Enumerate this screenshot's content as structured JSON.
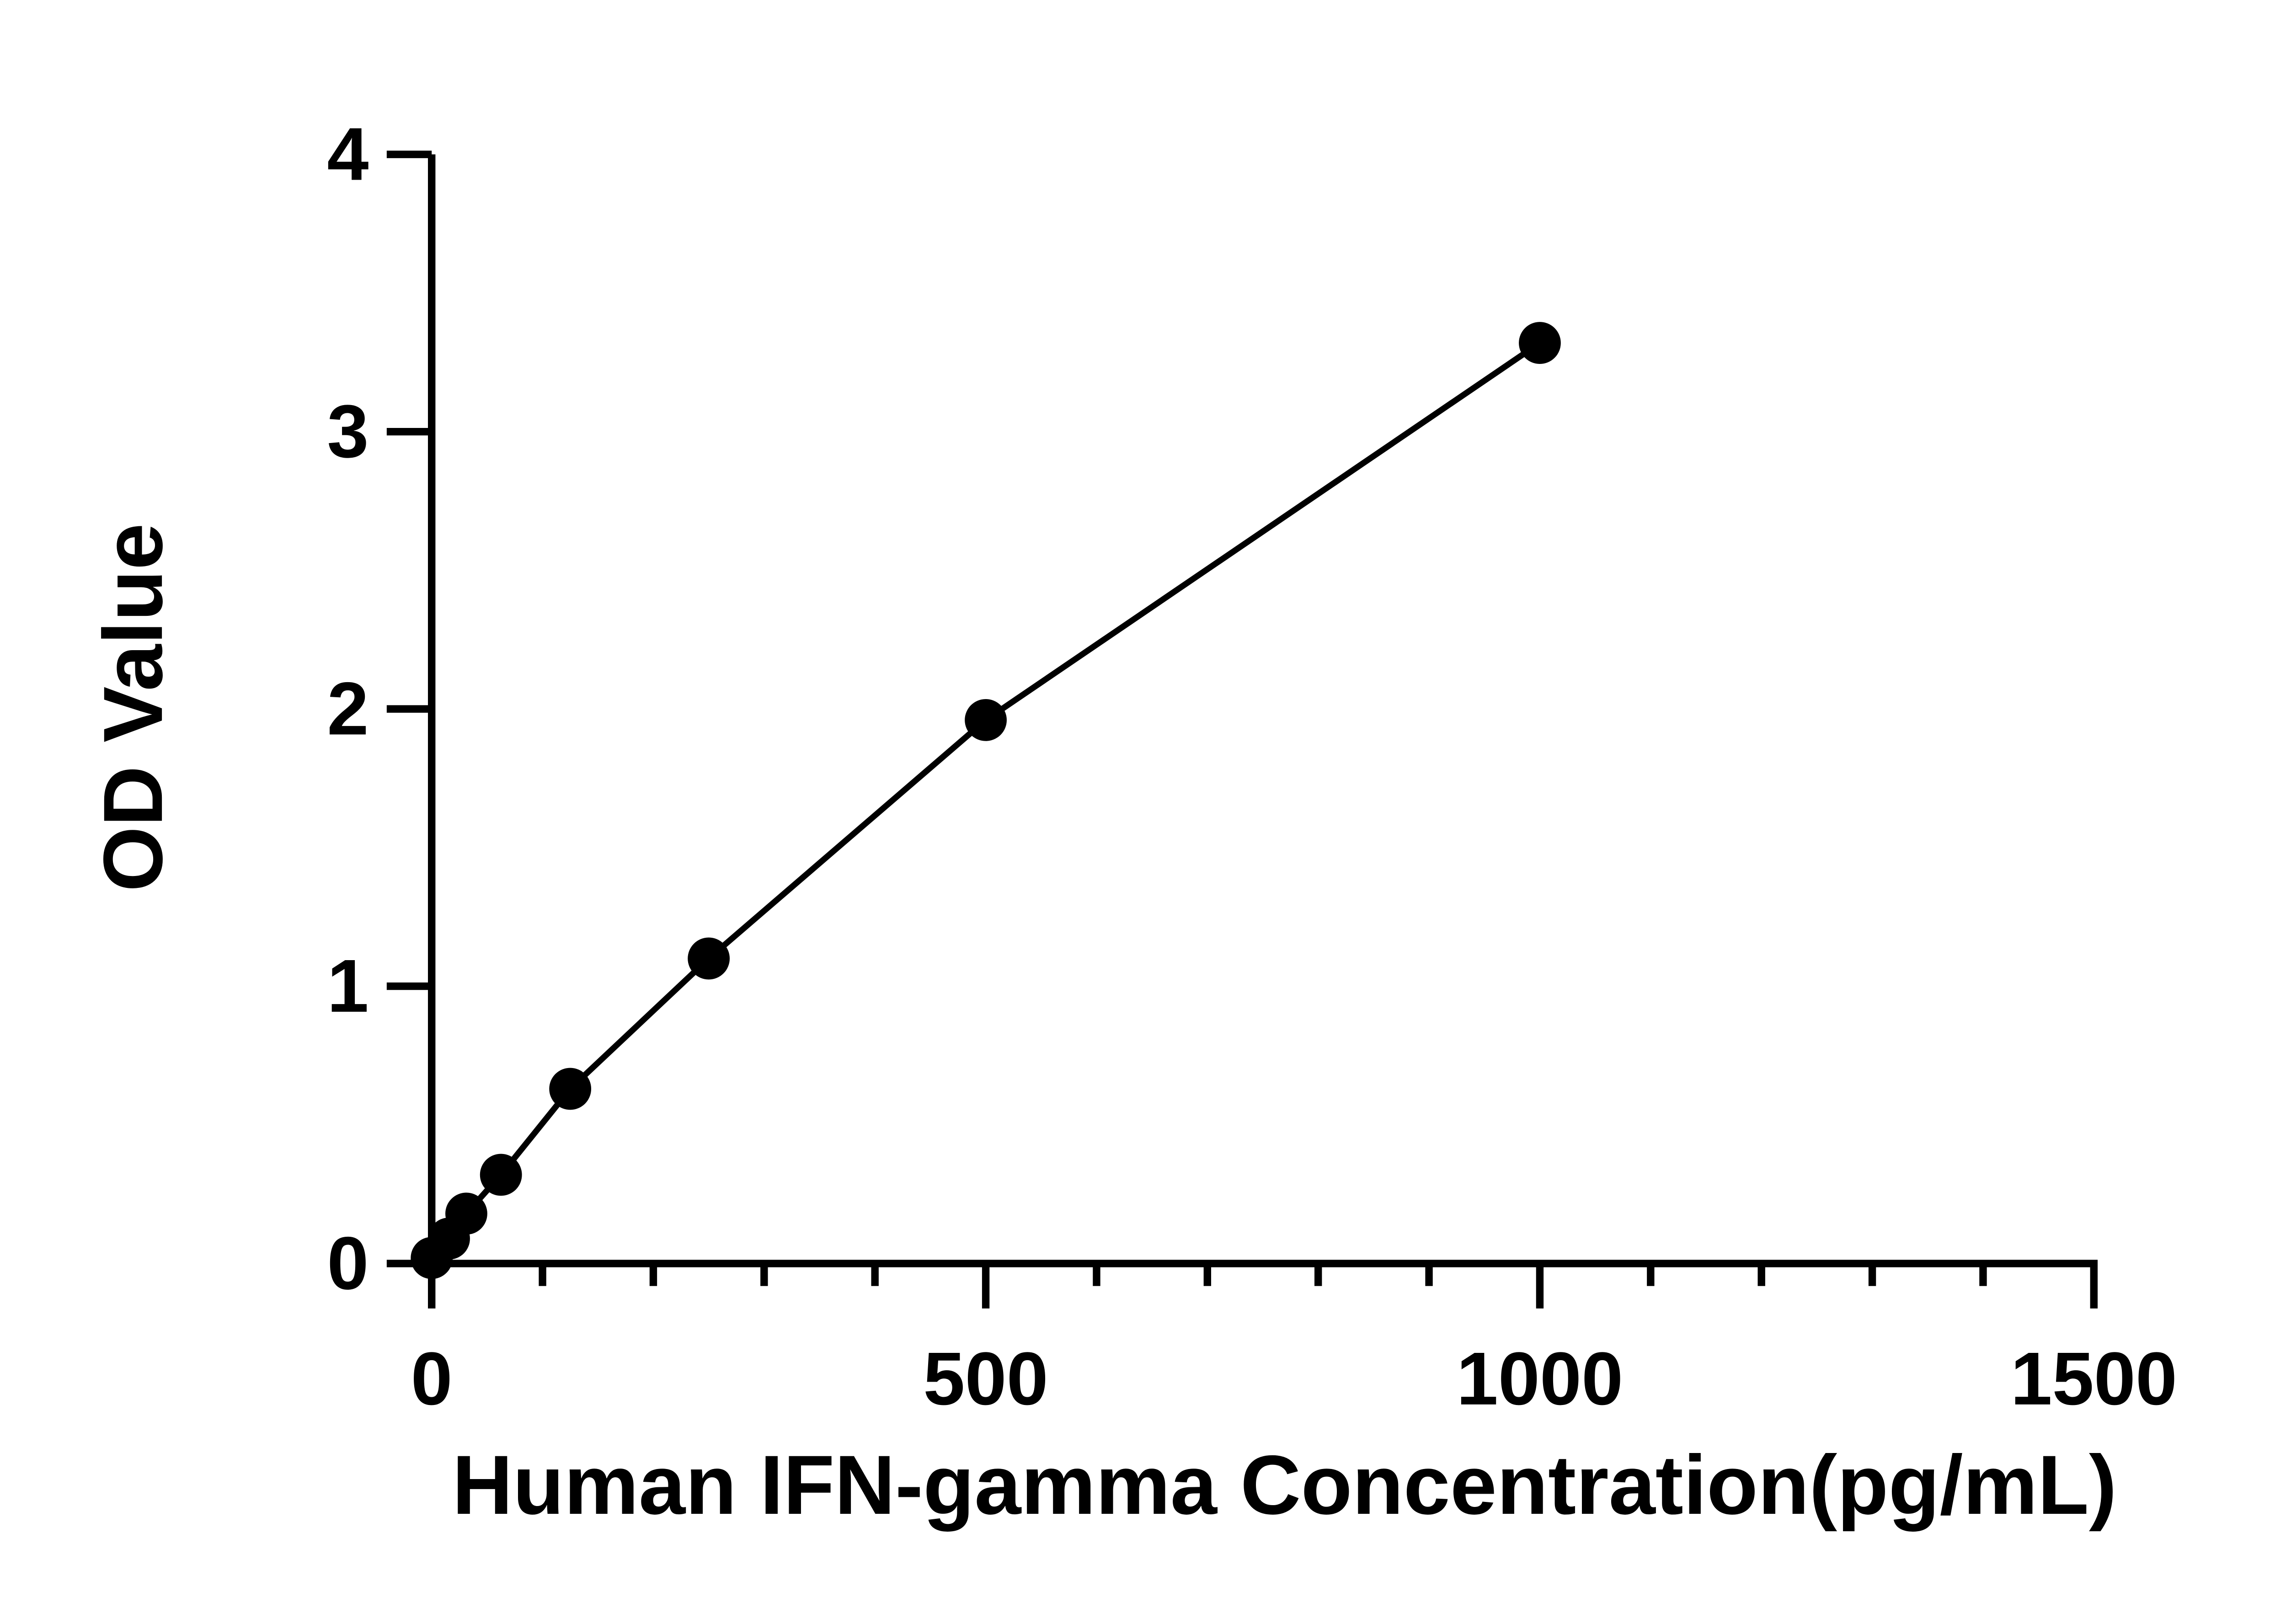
{
  "chart_data": {
    "type": "scatter-line",
    "x_label": "Human IFN-gamma Concentration(pg/mL)",
    "y_label": "OD Value",
    "x": [
      0,
      15.6,
      31.25,
      62.5,
      125,
      250,
      500,
      1000
    ],
    "series": [
      {
        "color": "#000000",
        "values": [
          0.02,
          0.09,
          0.18,
          0.32,
          0.63,
          1.1,
          1.96,
          3.32
        ]
      }
    ],
    "xlim": [
      0,
      1500
    ],
    "xticks": [
      0,
      500,
      1000,
      1500
    ],
    "ylim": [
      0,
      4
    ],
    "yticks": [
      0,
      1,
      2,
      3,
      4
    ],
    "grid": false
  }
}
